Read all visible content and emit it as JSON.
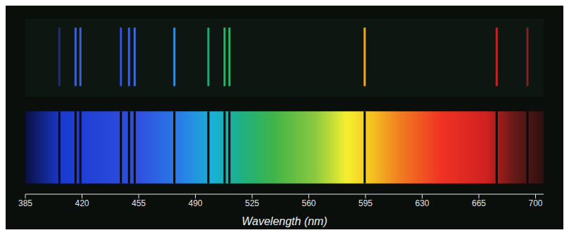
{
  "chart_data": {
    "type": "spectrum",
    "x_label": "Wavelength (nm)",
    "xlim": [
      385,
      705
    ],
    "xticks": [
      385,
      420,
      455,
      490,
      525,
      560,
      595,
      630,
      665,
      700
    ],
    "lines": [
      406,
      416,
      419,
      444,
      449,
      452.5,
      477,
      498,
      508,
      511,
      594.5,
      676,
      695
    ],
    "colors": [
      "#1c2c86",
      "#3a62d8",
      "#3a62d8",
      "#3552d6",
      "#3a60e0",
      "#3a6ae2",
      "#2a8cd6",
      "#1ea878",
      "#22b864",
      "#22b864",
      "#f0a81e",
      "#c42222",
      "#7a2424"
    ]
  }
}
